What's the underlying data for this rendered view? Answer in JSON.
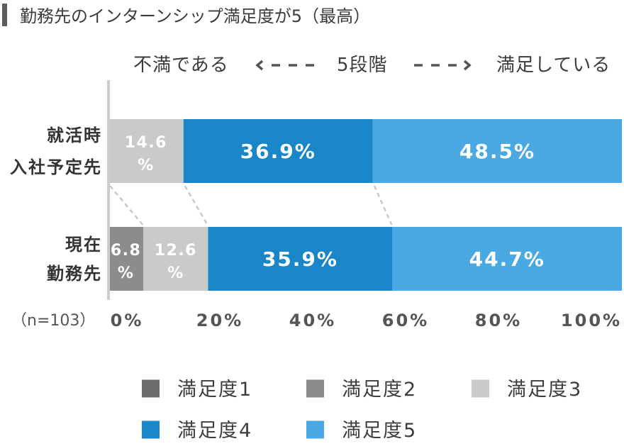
{
  "title": "勤務先のインターンシップ満足度が5（最高）",
  "scale_header": {
    "left": "不満である",
    "center": "5段階",
    "right": "満足している"
  },
  "sample_size": "（n=103）",
  "colors": {
    "title_marker": "#5c5c5c",
    "axis": "#cccccc",
    "connector": "#c8c8c8",
    "arrow": "#555555",
    "data_label": "#ffffff"
  },
  "chart_data": {
    "type": "bar",
    "orientation": "horizontal",
    "stacked": "percent",
    "categories": [
      [
        "就活時",
        "入社予定先"
      ],
      [
        "現在",
        "勤務先"
      ]
    ],
    "series": [
      {
        "name": "満足度1",
        "color": "#6b6b6b",
        "values": [
          0,
          0
        ]
      },
      {
        "name": "満足度2",
        "color": "#8c8c8c",
        "values": [
          0,
          6.8
        ]
      },
      {
        "name": "満足度3",
        "color": "#cacaca",
        "values": [
          14.6,
          12.6
        ]
      },
      {
        "name": "満足度4",
        "color": "#1886c8",
        "values": [
          36.9,
          35.9
        ]
      },
      {
        "name": "満足度5",
        "color": "#4aa8e3",
        "values": [
          48.5,
          44.7
        ]
      }
    ],
    "value_suffix": "%",
    "xlim": [
      0,
      100
    ],
    "xticks": [
      0,
      20,
      40,
      60,
      80,
      100
    ],
    "xtick_labels": [
      "0%",
      "20%",
      "40%",
      "60%",
      "80%",
      "100%"
    ],
    "grid": false,
    "legend": "bottom",
    "series_connectors": "dashed"
  }
}
